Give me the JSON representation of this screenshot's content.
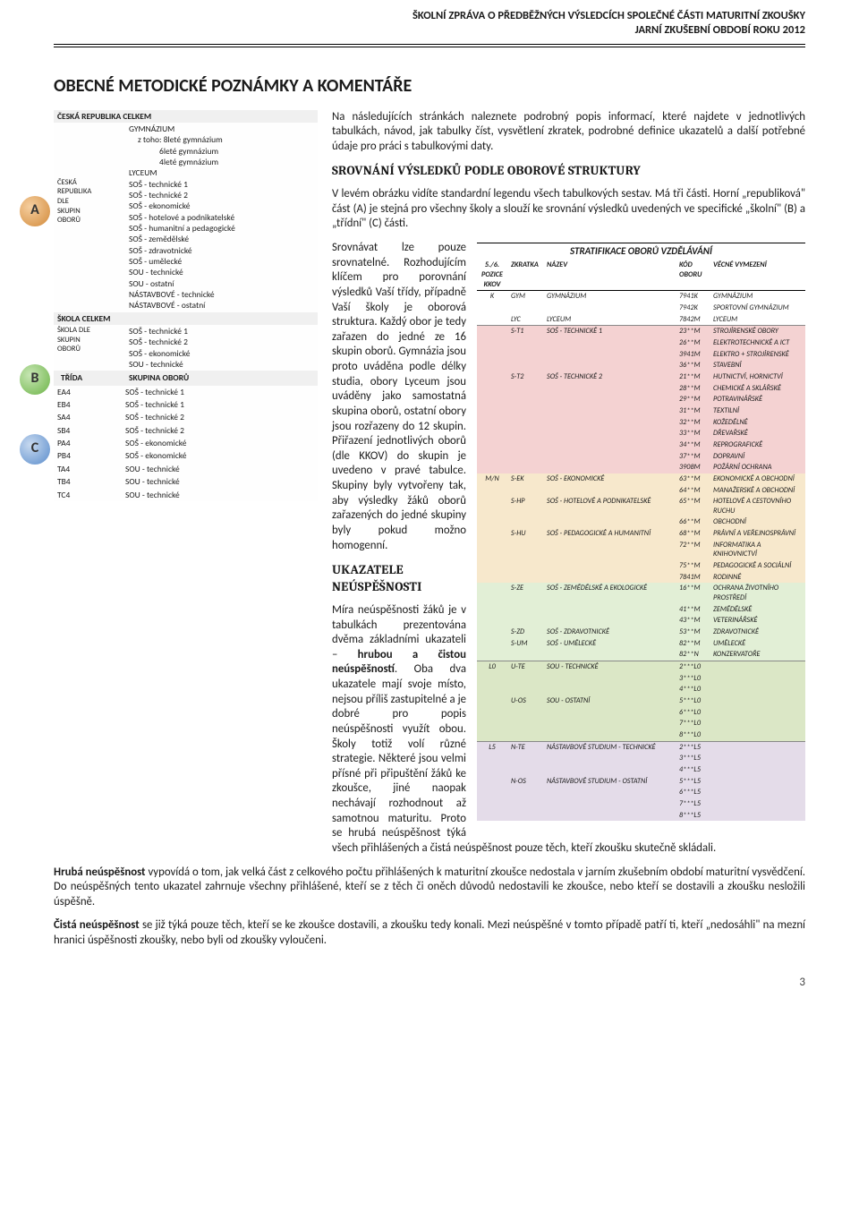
{
  "header": {
    "line1": "ŠKOLNÍ ZPRÁVA O PŘEDBĚŽNÝCH VÝSLEDCÍCH SPOLEČNÉ ČÁSTI MATURITNÍ ZKOUŠKY",
    "line2": "JARNÍ ZKUŠEBNÍ OBDOBÍ ROKU 2012"
  },
  "title": "OBECNÉ METODICKÉ POZNÁMKY A KOMENTÁŘE",
  "legend": {
    "badgeA": "A",
    "badgeB": "B",
    "badgeC": "C",
    "top": "ČESKÁ REPUBLIKA CELKEM",
    "items": [
      "GYMNÁZIUM",
      "z toho: 8leté gymnázium",
      "6leté gymnázium",
      "4leté gymnázium",
      "LYCEUM",
      "SOŠ - technické 1",
      "SOŠ - technické 2",
      "SOŠ - ekonomické",
      "SOŠ - hotelové a podnikatelské",
      "SOŠ - humanitní a pedagogické",
      "SOŠ - zemědělské",
      "SOŠ - zdravotnické",
      "SOŠ - umělecké",
      "SOU - technické",
      "SOU - ostatní",
      "NÁSTAVBOVÉ - technické",
      "NÁSTAVBOVÉ - ostatní"
    ],
    "rep_label_l1": "ČESKÁ",
    "rep_label_l2": "REPUBLIKA",
    "rep_label_l3": "DLE",
    "rep_label_l4": "SKUPIN",
    "rep_label_l5": "OBORŮ",
    "skola_celkem": "ŠKOLA CELKEM",
    "skola_dle_l1": "ŠKOLA DLE",
    "skola_dle_l2": "SKUPIN",
    "skola_dle_l3": "OBORŮ",
    "skola_items": [
      "SOŠ - technické 1",
      "SOŠ - technické 2",
      "SOŠ - ekonomické",
      "SOU - technické"
    ],
    "trida_head_l": "TŘÍDA",
    "trida_head_r": "SKUPINA OBORŮ",
    "trida_rows": [
      {
        "l": "EA4",
        "r": "SOŠ - technické 1"
      },
      {
        "l": "EB4",
        "r": "SOŠ - technické 1"
      },
      {
        "l": "SA4",
        "r": "SOŠ - technické 2"
      },
      {
        "l": "SB4",
        "r": "SOŠ - technické 2"
      },
      {
        "l": "PA4",
        "r": "SOŠ - ekonomické"
      },
      {
        "l": "PB4",
        "r": "SOŠ - ekonomické"
      },
      {
        "l": "TA4",
        "r": "SOU - technické"
      },
      {
        "l": "TB4",
        "r": "SOU - technické"
      },
      {
        "l": "TC4",
        "r": "SOU - technické"
      }
    ]
  },
  "body": {
    "p1": "Na následujících stránkách naleznete podrobný popis informací, které najdete v jednotlivých tabulkách, návod, jak tabulky číst, vysvětlení zkratek, podrobné definice ukazatelů a další potřebné údaje pro práci s tabulkovými daty.",
    "h1": "SROVNÁNÍ VÝSLEDKŮ PODLE OBOROVÉ STRUKTURY",
    "p2": "V levém obrázku vidíte standardní legendu všech tabulkových sestav. Má tři části. Horní „republiková\" část (A) je stejná pro všechny školy a slouží ke srovnání výsledků uvedených ve specifické „školní\" (B) a „třídní\" (C) části.",
    "p3a": "Srovnávat lze pouze srovnatelné. Rozhodujícím klíčem pro porovnání výsledků Vaší třídy, případně Vaší školy je oborová struktura. Každý obor je tedy zařazen do jedné ze 16 skupin oborů. Gymnázia jsou proto uváděna podle délky studia, obory Lyceum jsou uváděny jako samostatná skupina oborů, ostatní obory jsou rozřazeny do 12 skupin. Přiřazení jednotlivých oborů (dle KKOV) do skupin je uvedeno v pravé tabulce. Skupiny byly vytvořeny tak, aby výsledky žáků oborů zařazených do jedné skupiny byly pokud možno homogenní.",
    "h2": "UKAZATELE NEÚSPĚŠNOSTI",
    "p4a": "Míra neúspěšnosti žáků je v tabulkách prezentována dvěma základními ukazateli – ",
    "p4b": "hrubou a čistou neúspěšností",
    "p4c": ". Oba dva ukazatele mají svoje místo, nejsou příliš zastupitelné a je dobré pro popis neúspěšnosti využít obou. Školy totiž volí různé strategie. Některé jsou velmi přísné při připuštění žáků ke zkoušce, jiné naopak nechávají rozhodnout až samotnou maturitu. Proto se hrubá neúspěšnost týká všech přihlášených a čistá neúspěšnost pouze těch, kteří zkoušku skutečně skládali.",
    "p5a": "Hrubá neúspěšnost",
    "p5b": " vypovídá o tom, jak velká část z celkového počtu přihlášených k maturitní zkoušce nedostala v jarním zkušebním období maturitní vysvědčení. Do neúspěšných tento ukazatel zahrnuje všechny přihlášené, kteří se z těch či oněch důvodů nedostavili ke zkoušce, nebo kteří se dostavili a zkoušku nesložili úspěšně.",
    "p6a": "Čistá neúspěšnost",
    "p6b": " se již týká pouze těch, kteří se ke zkoušce dostavili, a zkoušku tedy konali. Mezi neúspěšné v tomto případě patří ti, kteří „nedosáhli\" na mezní hranici úspěšnosti zkoušky, nebo byli od zkoušky vyloučeni."
  },
  "strat": {
    "title": "STRATIFIKACE OBORŮ VZDĚLÁVÁNÍ",
    "headers": {
      "c1": "5./6.\nPOZICE\nKKOV",
      "c2": "ZKRATKA",
      "c3": "NÁZEV",
      "c4": "KÓD\nOBORU",
      "c5": "VĚCNÉ VYMEZENÍ"
    },
    "rows": [
      {
        "cls": "strat-row-k",
        "c1": "K",
        "c2": "GYM",
        "c3": "GYMNÁZIUM",
        "c4": "7941K",
        "c5": "GYMNÁZIUM"
      },
      {
        "cls": "strat-row-k",
        "c1": "",
        "c2": "",
        "c3": "",
        "c4": "7942K",
        "c5": "SPORTOVNÍ GYMNÁZIUM"
      },
      {
        "cls": "strat-row-l strat-borderline",
        "c1": "",
        "c2": "LYC",
        "c3": "LYCEUM",
        "c4": "7842M",
        "c5": "LYCEUM"
      },
      {
        "cls": "strat-row-t1",
        "c1": "",
        "c2": "S-T1",
        "c3": "SOŠ - TECHNICKÉ 1",
        "c4": "23**M",
        "c5": "STROJÍRENSKÉ OBORY"
      },
      {
        "cls": "strat-row-t1",
        "c1": "",
        "c2": "",
        "c3": "",
        "c4": "26**M",
        "c5": "ELEKTROTECHNICKÉ A ICT"
      },
      {
        "cls": "strat-row-t1",
        "c1": "",
        "c2": "",
        "c3": "",
        "c4": "3941M",
        "c5": "ELEKTRO + STROJÍRENSKÉ"
      },
      {
        "cls": "strat-row-t1",
        "c1": "",
        "c2": "",
        "c3": "",
        "c4": "36**M",
        "c5": "STAVEBNÍ"
      },
      {
        "cls": "strat-row-t2",
        "c1": "",
        "c2": "S-T2",
        "c3": "SOŠ - TECHNICKÉ 2",
        "c4": "21**M",
        "c5": "HUTNICTVÍ, HORNICTVÍ"
      },
      {
        "cls": "strat-row-t2",
        "c1": "",
        "c2": "",
        "c3": "",
        "c4": "28**M",
        "c5": "CHEMICKÉ A SKLÁŘSKÉ"
      },
      {
        "cls": "strat-row-t2",
        "c1": "",
        "c2": "",
        "c3": "",
        "c4": "29**M",
        "c5": "POTRAVINÁŘSKÉ"
      },
      {
        "cls": "strat-row-t2",
        "c1": "",
        "c2": "",
        "c3": "",
        "c4": "31**M",
        "c5": "TEXTILNÍ"
      },
      {
        "cls": "strat-row-t2",
        "c1": "",
        "c2": "",
        "c3": "",
        "c4": "32**M",
        "c5": "KOŽEDĚLNÉ"
      },
      {
        "cls": "strat-row-t2",
        "c1": "",
        "c2": "",
        "c3": "",
        "c4": "33**M",
        "c5": "DŘEVAŘSKÉ"
      },
      {
        "cls": "strat-row-t2",
        "c1": "",
        "c2": "",
        "c3": "",
        "c4": "34**M",
        "c5": "REPROGRAFICKÉ"
      },
      {
        "cls": "strat-row-t2",
        "c1": "",
        "c2": "",
        "c3": "",
        "c4": "37**M",
        "c5": "DOPRAVNÍ"
      },
      {
        "cls": "strat-row-t2",
        "c1": "",
        "c2": "",
        "c3": "",
        "c4": "3908M",
        "c5": "POŽÁRNÍ OCHRANA"
      },
      {
        "cls": "strat-row-ek",
        "c1": "M/N",
        "c2": "S-EK",
        "c3": "SOŠ - EKONOMICKÉ",
        "c4": "63**M",
        "c5": "EKONOMICKÉ A OBCHODNÍ"
      },
      {
        "cls": "strat-row-ek",
        "c1": "",
        "c2": "",
        "c3": "",
        "c4": "64**M",
        "c5": "MANAŽERSKÉ A OBCHODNÍ"
      },
      {
        "cls": "strat-row-hp",
        "c1": "",
        "c2": "S-HP",
        "c3": "SOŠ - HOTELOVÉ A PODNIKATELSKÉ",
        "c4": "65**M",
        "c5": "HOTELOVÉ A CESTOVNÍHO RUCHU"
      },
      {
        "cls": "strat-row-hp",
        "c1": "",
        "c2": "",
        "c3": "",
        "c4": "66**M",
        "c5": "OBCHODNÍ"
      },
      {
        "cls": "strat-row-hu",
        "c1": "",
        "c2": "S-HU",
        "c3": "SOŠ - PEDAGOGICKÉ A HUMANITNÍ",
        "c4": "68**M",
        "c5": "PRÁVNÍ A VEŘEJNOSPRÁVNÍ"
      },
      {
        "cls": "strat-row-hu",
        "c1": "",
        "c2": "",
        "c3": "",
        "c4": "72**M",
        "c5": "INFORMATIKA A KNIHOVNICTVÍ"
      },
      {
        "cls": "strat-row-hu",
        "c1": "",
        "c2": "",
        "c3": "",
        "c4": "75**M",
        "c5": "PEDAGOGICKÉ A SOCIÁLNÍ"
      },
      {
        "cls": "strat-row-hu",
        "c1": "",
        "c2": "",
        "c3": "",
        "c4": "7841M",
        "c5": "RODINNÉ"
      },
      {
        "cls": "strat-row-ze",
        "c1": "",
        "c2": "S-ZE",
        "c3": "SOŠ - ZEMĚDĚLSKÉ A EKOLOGICKÉ",
        "c4": "16**M",
        "c5": "OCHRANA ŽIVOTNÍHO PROSTŘEDÍ"
      },
      {
        "cls": "strat-row-ze",
        "c1": "",
        "c2": "",
        "c3": "",
        "c4": "41**M",
        "c5": "ZEMĚDĚLSKÉ"
      },
      {
        "cls": "strat-row-ze",
        "c1": "",
        "c2": "",
        "c3": "",
        "c4": "43**M",
        "c5": "VETERINÁŘSKÉ"
      },
      {
        "cls": "strat-row-zd",
        "c1": "",
        "c2": "S-ZD",
        "c3": "SOŠ - ZDRAVOTNICKÉ",
        "c4": "53**M",
        "c5": "ZDRAVOTNICKÉ"
      },
      {
        "cls": "strat-row-um",
        "c1": "",
        "c2": "S-UM",
        "c3": "SOŠ - UMĚLECKÉ",
        "c4": "82**M",
        "c5": "UMĚLECKÉ"
      },
      {
        "cls": "strat-row-um strat-borderline",
        "c1": "",
        "c2": "",
        "c3": "",
        "c4": "82**N",
        "c5": "KONZERVATOŘE"
      },
      {
        "cls": "strat-row-ute",
        "c1": "L0",
        "c2": "U-TE",
        "c3": "SOU - TECHNICKÉ",
        "c4": "2***L0",
        "c5": ""
      },
      {
        "cls": "strat-row-ute",
        "c1": "",
        "c2": "",
        "c3": "",
        "c4": "3***L0",
        "c5": ""
      },
      {
        "cls": "strat-row-ute",
        "c1": "",
        "c2": "",
        "c3": "",
        "c4": "4***L0",
        "c5": ""
      },
      {
        "cls": "strat-row-uos",
        "c1": "",
        "c2": "U-OS",
        "c3": "SOU - OSTATNÍ",
        "c4": "5***L0",
        "c5": ""
      },
      {
        "cls": "strat-row-uos",
        "c1": "",
        "c2": "",
        "c3": "",
        "c4": "6***L0",
        "c5": ""
      },
      {
        "cls": "strat-row-uos",
        "c1": "",
        "c2": "",
        "c3": "",
        "c4": "7***L0",
        "c5": ""
      },
      {
        "cls": "strat-row-uos strat-borderline",
        "c1": "",
        "c2": "",
        "c3": "",
        "c4": "8***L0",
        "c5": ""
      },
      {
        "cls": "strat-row-nte",
        "c1": "L5",
        "c2": "N-TE",
        "c3": "NÁSTAVBOVÉ STUDIUM - TECHNICKÉ",
        "c4": "2***L5",
        "c5": ""
      },
      {
        "cls": "strat-row-nte",
        "c1": "",
        "c2": "",
        "c3": "",
        "c4": "3***L5",
        "c5": ""
      },
      {
        "cls": "strat-row-nte",
        "c1": "",
        "c2": "",
        "c3": "",
        "c4": "4***L5",
        "c5": ""
      },
      {
        "cls": "strat-row-nos",
        "c1": "",
        "c2": "N-OS",
        "c3": "NÁSTAVBOVÉ STUDIUM - OSTATNÍ",
        "c4": "5***L5",
        "c5": ""
      },
      {
        "cls": "strat-row-nos",
        "c1": "",
        "c2": "",
        "c3": "",
        "c4": "6***L5",
        "c5": ""
      },
      {
        "cls": "strat-row-nos",
        "c1": "",
        "c2": "",
        "c3": "",
        "c4": "7***L5",
        "c5": ""
      },
      {
        "cls": "strat-row-nos",
        "c1": "",
        "c2": "",
        "c3": "",
        "c4": "8***L5",
        "c5": ""
      }
    ]
  },
  "colors": {
    "row_t": "#f4d2d2",
    "row_ek": "#f7e8cc",
    "row_ze": "#e2efd6",
    "row_ut": "#dbe7c6",
    "row_n": "#e4dce9"
  },
  "page_number": "3"
}
